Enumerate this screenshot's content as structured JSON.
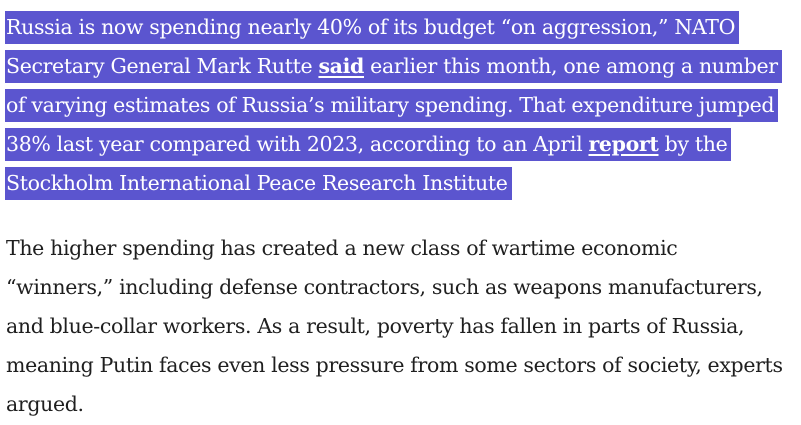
{
  "article": {
    "selected_paragraph": {
      "line1": "Russia is now spending nearly 40% of its budget “on aggression,” NATO",
      "line2_before": "Secretary General Mark Rutte ",
      "link_said": "said",
      "line2_after": " earlier this month, one among a number",
      "line3": "of varying estimates of Russia’s military spending. That expenditure jumped",
      "line4_before": "38% last year compared with 2023, according to an April ",
      "link_report": "report",
      "line4_after": " by the",
      "line5": "Stockholm International Peace Research Institute"
    },
    "second_paragraph": {
      "line1": "The higher spending has created a new class of wartime economic",
      "line2": "“winners,” including defense contractors, such as weapons manufacturers,",
      "line3": "and blue-collar workers. As a result, poverty has fallen in parts of Russia,",
      "line4": "meaning Putin faces even less pressure from some sectors of society, experts",
      "line5": "argued."
    }
  },
  "colors": {
    "selection": "#5b55cf",
    "text": "#1f1f1f"
  }
}
